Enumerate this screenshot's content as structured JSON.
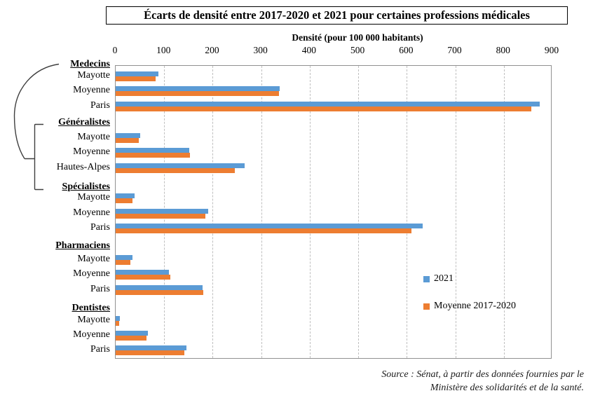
{
  "chart_data": {
    "type": "bar",
    "orientation": "horizontal",
    "title": "Écarts de densité entre 2017-2020 et 2021 pour certaines professions médicales",
    "xlabel": "Densité (pour 100 000 habitants)",
    "xlim": [
      0,
      900
    ],
    "xticks": [
      0,
      100,
      200,
      300,
      400,
      500,
      600,
      700,
      800,
      900
    ],
    "grid": "vertical dashed gridlines every 100",
    "legend_position": "middle-right",
    "series": [
      {
        "name": "2021",
        "color": "#5B9BD5"
      },
      {
        "name": "Moyenne 2017-2020",
        "color": "#ED7D31"
      }
    ],
    "groups": [
      {
        "label": "Medecins",
        "rows": [
          {
            "label": "Mayotte",
            "values": [
              88,
              82
            ]
          },
          {
            "label": "Moyenne",
            "values": [
              338,
              336
            ]
          },
          {
            "label": "Paris",
            "values": [
              874,
              856
            ]
          }
        ]
      },
      {
        "label": "Généralistes",
        "rows": [
          {
            "label": "Mayotte",
            "values": [
              50,
              48
            ]
          },
          {
            "label": "Moyenne",
            "values": [
              151,
              153
            ]
          },
          {
            "label": "Hautes-Alpes",
            "values": [
              266,
              246
            ]
          }
        ]
      },
      {
        "label": "Spécialistes",
        "rows": [
          {
            "label": "Mayotte",
            "values": [
              39,
              35
            ]
          },
          {
            "label": "Moyenne",
            "values": [
              190,
              185
            ]
          },
          {
            "label": "Paris",
            "values": [
              633,
              610
            ]
          }
        ]
      },
      {
        "label": "Pharmaciens",
        "rows": [
          {
            "label": "Mayotte",
            "values": [
              34,
              30
            ]
          },
          {
            "label": "Moyenne",
            "values": [
              110,
              112
            ]
          },
          {
            "label": "Paris",
            "values": [
              179,
              181
            ]
          }
        ]
      },
      {
        "label": "Dentistes",
        "rows": [
          {
            "label": "Mayotte",
            "values": [
              9,
              7
            ]
          },
          {
            "label": "Moyenne",
            "values": [
              66,
              64
            ]
          },
          {
            "label": "Paris",
            "values": [
              146,
              142
            ]
          }
        ]
      }
    ],
    "annotation": "hand-drawn curve and bracket linking Medecins to the Généralistes and Spécialistes groups"
  },
  "source_lines": [
    "Source : Sénat, à partir des données fournies par le",
    "Ministère des solidarités et de la santé."
  ],
  "colors": {
    "series_2021": "#5B9BD5",
    "series_moyenne_2017_2020": "#ED7D31",
    "gridline": "#BFBFBF",
    "plot_border": "#919191"
  }
}
